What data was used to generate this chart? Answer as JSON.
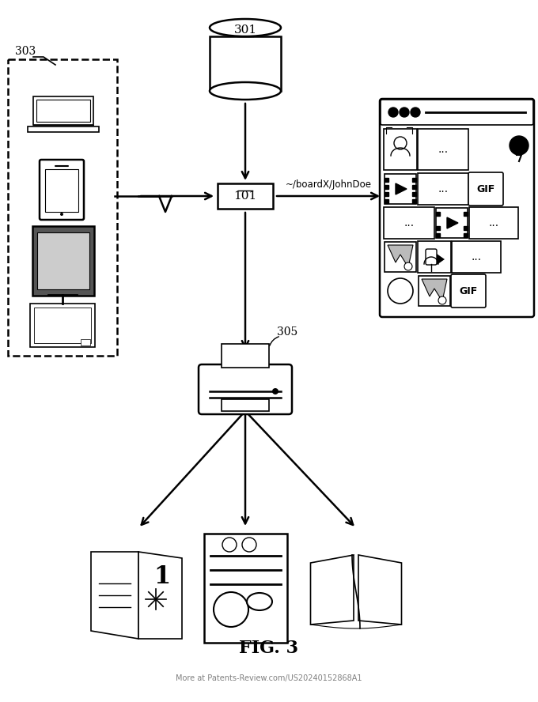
{
  "title": "FIG. 3",
  "fig_width": 6.8,
  "fig_height": 8.88,
  "bg_color": "#ffffff",
  "label_301": "301",
  "label_101": "101",
  "label_303": "303",
  "label_305": "305",
  "path_label": "~/boardX/JohnDoe",
  "footer": "More at Patents-Review.com/US20240152868A1"
}
